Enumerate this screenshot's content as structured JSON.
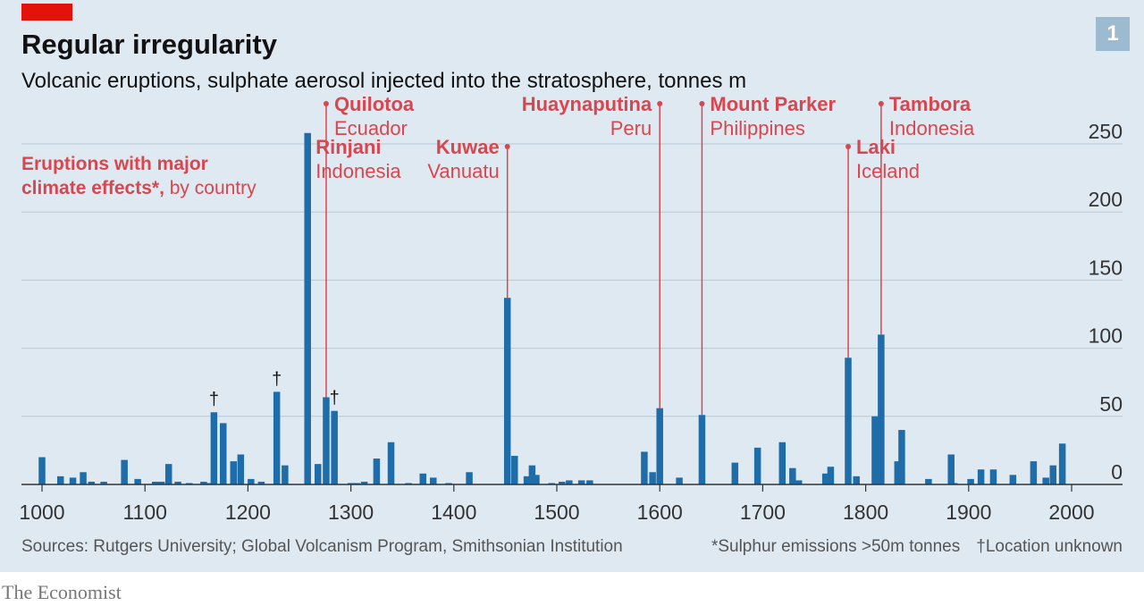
{
  "header": {
    "title": "Regular irregularity",
    "subtitle": "Volcanic eruptions, sulphate aerosol injected into the stratosphere, tonnes m",
    "badge": "1"
  },
  "legend": {
    "line1": "Eruptions with major",
    "line2_bold": "climate effects*,",
    "line2_rest": " by country"
  },
  "footer": {
    "sources": "Sources: Rutgers University; Global Volcanism Program, Smithsonian Institution",
    "note1": "*Sulphur emissions >50m tonnes",
    "note2": "†Location unknown",
    "brand": "The Economist"
  },
  "colors": {
    "bar": "#1f6da8",
    "annotation": "#d8474f",
    "grid": "#b7c9d6",
    "panel": "#dfe9f1",
    "accent": "#e3120b"
  },
  "chart_data": {
    "type": "bar",
    "title": "Regular irregularity",
    "subtitle": "Volcanic eruptions, sulphate aerosol injected into the stratosphere, tonnes m",
    "xlim": [
      1000,
      2000
    ],
    "ylim": [
      0,
      250
    ],
    "x_ticks": [
      1000,
      1100,
      1200,
      1300,
      1400,
      1500,
      1600,
      1700,
      1800,
      1900,
      2000
    ],
    "y_ticks": [
      0,
      50,
      100,
      150,
      200,
      250
    ],
    "grid": true,
    "y_axis_side": "right",
    "bars": [
      {
        "x": 1000,
        "y": 20
      },
      {
        "x": 1018,
        "y": 6
      },
      {
        "x": 1030,
        "y": 5
      },
      {
        "x": 1040,
        "y": 9
      },
      {
        "x": 1048,
        "y": 2
      },
      {
        "x": 1060,
        "y": 2
      },
      {
        "x": 1080,
        "y": 18
      },
      {
        "x": 1093,
        "y": 4
      },
      {
        "x": 1110,
        "y": 2
      },
      {
        "x": 1116,
        "y": 2
      },
      {
        "x": 1123,
        "y": 15
      },
      {
        "x": 1132,
        "y": 2
      },
      {
        "x": 1143,
        "y": 1
      },
      {
        "x": 1157,
        "y": 2
      },
      {
        "x": 1163,
        "y": 1
      },
      {
        "x": 1167,
        "y": 53
      },
      {
        "x": 1176,
        "y": 45
      },
      {
        "x": 1186,
        "y": 17
      },
      {
        "x": 1193,
        "y": 22
      },
      {
        "x": 1203,
        "y": 4
      },
      {
        "x": 1213,
        "y": 2
      },
      {
        "x": 1228,
        "y": 68
      },
      {
        "x": 1236,
        "y": 14
      },
      {
        "x": 1258,
        "y": 258
      },
      {
        "x": 1268,
        "y": 15
      },
      {
        "x": 1276,
        "y": 64
      },
      {
        "x": 1284,
        "y": 54
      },
      {
        "x": 1300,
        "y": 1
      },
      {
        "x": 1306,
        "y": 1
      },
      {
        "x": 1313,
        "y": 2
      },
      {
        "x": 1325,
        "y": 19
      },
      {
        "x": 1339,
        "y": 31
      },
      {
        "x": 1356,
        "y": 1
      },
      {
        "x": 1370,
        "y": 8
      },
      {
        "x": 1380,
        "y": 5
      },
      {
        "x": 1395,
        "y": 1
      },
      {
        "x": 1415,
        "y": 9
      },
      {
        "x": 1452,
        "y": 137
      },
      {
        "x": 1459,
        "y": 21
      },
      {
        "x": 1471,
        "y": 6
      },
      {
        "x": 1476,
        "y": 14
      },
      {
        "x": 1480,
        "y": 7
      },
      {
        "x": 1495,
        "y": 1
      },
      {
        "x": 1505,
        "y": 2
      },
      {
        "x": 1512,
        "y": 3
      },
      {
        "x": 1524,
        "y": 3
      },
      {
        "x": 1532,
        "y": 3
      },
      {
        "x": 1585,
        "y": 24
      },
      {
        "x": 1593,
        "y": 9
      },
      {
        "x": 1600,
        "y": 56
      },
      {
        "x": 1619,
        "y": 5
      },
      {
        "x": 1641,
        "y": 51
      },
      {
        "x": 1673,
        "y": 16
      },
      {
        "x": 1695,
        "y": 27
      },
      {
        "x": 1719,
        "y": 31
      },
      {
        "x": 1729,
        "y": 12
      },
      {
        "x": 1735,
        "y": 3
      },
      {
        "x": 1761,
        "y": 8
      },
      {
        "x": 1766,
        "y": 13
      },
      {
        "x": 1783,
        "y": 93
      },
      {
        "x": 1791,
        "y": 6
      },
      {
        "x": 1809,
        "y": 50
      },
      {
        "x": 1815,
        "y": 110
      },
      {
        "x": 1831,
        "y": 17
      },
      {
        "x": 1835,
        "y": 40
      },
      {
        "x": 1861,
        "y": 4
      },
      {
        "x": 1883,
        "y": 22
      },
      {
        "x": 1886,
        "y": 1
      },
      {
        "x": 1902,
        "y": 4
      },
      {
        "x": 1912,
        "y": 11
      },
      {
        "x": 1924,
        "y": 11
      },
      {
        "x": 1943,
        "y": 7
      },
      {
        "x": 1963,
        "y": 17
      },
      {
        "x": 1975,
        "y": 5
      },
      {
        "x": 1982,
        "y": 14
      },
      {
        "x": 1991,
        "y": 30
      }
    ],
    "daggers": [
      1167,
      1228,
      1284
    ],
    "annotations": [
      {
        "name": "Rinjani",
        "country": "Indonesia",
        "x": 1258,
        "y": 258,
        "side": "right",
        "label_y": 184
      },
      {
        "name": "Kuwae",
        "country": "Vanuatu",
        "x": 1452,
        "y": 137,
        "side": "left",
        "label_y": 184
      },
      {
        "name": "Laki",
        "country": "Iceland",
        "x": 1783,
        "y": 93,
        "side": "right",
        "label_y": 184
      },
      {
        "name": "Quilotoa",
        "country": "Ecuador",
        "x": 1276,
        "y": 64,
        "side": "right",
        "label_y": 136
      },
      {
        "name": "Huaynaputina",
        "country": "Peru",
        "x": 1600,
        "y": 56,
        "side": "left",
        "label_y": 136
      },
      {
        "name": "Mount Parker",
        "country": "Philippines",
        "x": 1641,
        "y": 51,
        "side": "right",
        "label_y": 136
      },
      {
        "name": "Tambora",
        "country": "Indonesia",
        "x": 1815,
        "y": 110,
        "side": "right",
        "label_y": 136
      }
    ]
  }
}
